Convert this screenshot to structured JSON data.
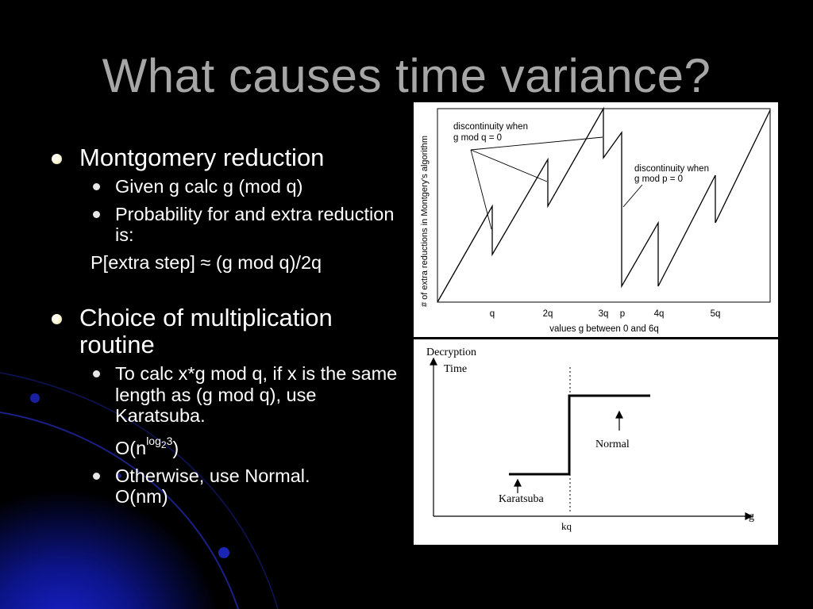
{
  "slide": {
    "title": "What causes time variance?",
    "bullets": [
      {
        "text": "Montgomery reduction",
        "subs": [
          "Given g calc g (mod q)",
          "Probability for and extra reduction is:"
        ],
        "formula": "P[extra step] ≈ (g mod q)/2q"
      },
      {
        "text": "Choice of multiplication routine",
        "subs": [
          "To calc x*g mod q, if x is the same length as (g mod q), use Karatsuba.",
          "Otherwise, use Normal."
        ],
        "complexity_karatsuba": {
          "base": "O(n",
          "exp": "log",
          "sub": "2",
          "exp2": "3",
          "close": ")"
        },
        "complexity_normal": "O(nm)"
      }
    ]
  },
  "figure_montgomery": {
    "ylabel": "# of extra reductions in Montgery's algorithm",
    "xlabel": "values g between 0 and 6q",
    "ticks": [
      "q",
      "2q",
      "3q",
      "p",
      "4q",
      "5q"
    ],
    "annotation_q": [
      "discontinuity when",
      "g mod q = 0"
    ],
    "annotation_p": [
      "discontinuity when",
      "g mod p = 0"
    ]
  },
  "figure_decryption": {
    "ylabel": [
      "Decryption",
      "Time"
    ],
    "xlabel": "g",
    "threshold": "kq",
    "label_low": "Karatsuba",
    "label_high": "Normal"
  },
  "colors": {
    "background": "#000000",
    "title": "#a6a6a6",
    "glow": "#1420c8",
    "text": "#ffffff"
  }
}
